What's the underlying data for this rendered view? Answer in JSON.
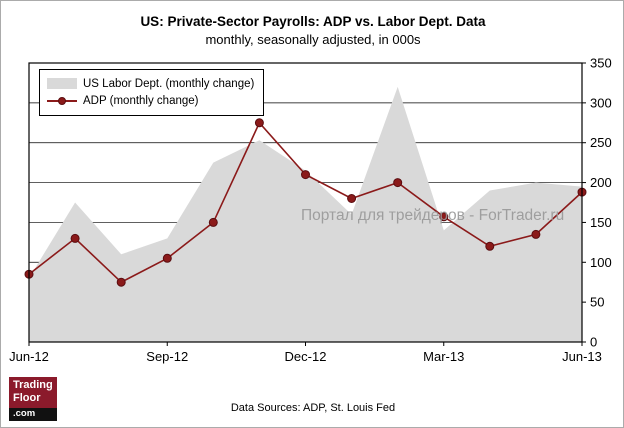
{
  "title": "US: Private-Sector Payrolls: ADP vs. Labor Dept. Data",
  "subtitle": "monthly, seasonally adjusted, in 000s",
  "legend": {
    "items": [
      {
        "label": "US Labor Dept. (monthly change)"
      },
      {
        "label": "ADP (monthly change)"
      }
    ]
  },
  "watermark": "Портал для трейдеров - ForTrader.ru",
  "footer": "Data Sources: ADP, St. Louis Fed",
  "logo": {
    "line1": "Trading",
    "line2": "Floor",
    "line3": ".com"
  },
  "colors": {
    "adp_line": "#8b1a1a",
    "labor_area": "#d9d9d9",
    "logo_red": "#8b1a2b"
  },
  "chart_data": {
    "type": "line",
    "title": "US: Private-Sector Payrolls: ADP vs. Labor Dept. Data",
    "subtitle": "monthly, seasonally adjusted, in 000s",
    "x": [
      "Jun-12",
      "Jul-12",
      "Aug-12",
      "Sep-12",
      "Oct-12",
      "Nov-12",
      "Dec-12",
      "Jan-13",
      "Feb-13",
      "Mar-13",
      "Apr-13",
      "May-13",
      "Jun-13"
    ],
    "x_tick_labels": [
      "Jun-12",
      "Sep-12",
      "Dec-12",
      "Mar-13",
      "Jun-13"
    ],
    "x_tick_positions": [
      0,
      3,
      6,
      9,
      12
    ],
    "series": [
      {
        "name": "US Labor Dept. (monthly change)",
        "kind": "area",
        "color": "#d9d9d9",
        "values": [
          80,
          175,
          110,
          130,
          225,
          253,
          215,
          160,
          320,
          140,
          190,
          200,
          195
        ]
      },
      {
        "name": "ADP (monthly change)",
        "kind": "line-marker",
        "color": "#8b1a1a",
        "marker_stroke": "#5a0d10",
        "values": [
          85,
          130,
          75,
          105,
          150,
          275,
          210,
          180,
          200,
          157,
          120,
          135,
          188
        ]
      }
    ],
    "ylim": [
      0,
      350
    ],
    "y_step": 50,
    "grid": "horizontal",
    "legend_position": "top-left",
    "y_axis_side": "right"
  }
}
